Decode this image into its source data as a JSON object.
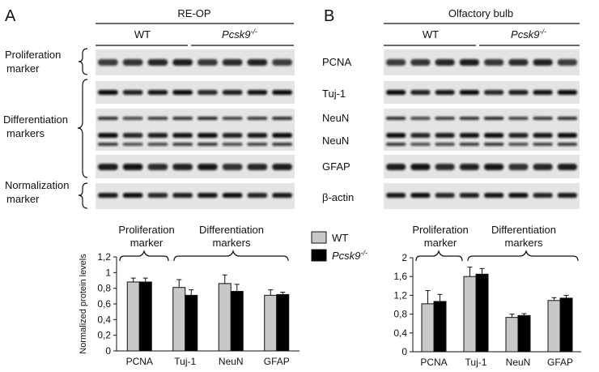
{
  "panel_a": {
    "letter": "A",
    "title": "RE-OP",
    "group_wt": "WT",
    "group_ko_base": "Pcsk9",
    "group_ko_sup": "-/-",
    "side_labels": [
      {
        "line1": "Proliferation",
        "line2": "marker"
      },
      {
        "line1": "Differentiation",
        "line2": "markers"
      },
      {
        "line1": "Normalization",
        "line2": "marker"
      }
    ]
  },
  "panel_b": {
    "letter": "B",
    "title": "Olfactory bulb",
    "group_wt": "WT",
    "group_ko_base": "Pcsk9",
    "group_ko_sup": "-/-"
  },
  "blot_rows": [
    "PCNA",
    "Tuj-1",
    "NeuN",
    "NeuN",
    "GFAP",
    "β-actin"
  ],
  "legend": {
    "wt": "WT",
    "ko_base": "Pcsk9",
    "ko_sup": "-/-",
    "wt_color": "#c8c8c8",
    "ko_color": "#000000"
  },
  "chart_labels": {
    "prolif_line1": "Proliferation",
    "prolif_line2": "marker",
    "diff_line1": "Differentiation",
    "diff_line2": "markers"
  },
  "chart_data": [
    {
      "type": "bar",
      "ylabel": "Normalized protein levels",
      "categories": [
        "PCNA",
        "Tuj-1",
        "NeuN",
        "GFAP"
      ],
      "ylim": [
        0,
        1.2
      ],
      "yticks": [
        "0",
        "0,2",
        "0,4",
        "0,6",
        "0,8",
        "1",
        "1,2"
      ],
      "series": [
        {
          "name": "WT",
          "values": [
            0.88,
            0.81,
            0.86,
            0.71
          ],
          "errors": [
            0.05,
            0.1,
            0.11,
            0.07
          ]
        },
        {
          "name": "Pcsk9-/-",
          "values": [
            0.88,
            0.71,
            0.76,
            0.72
          ],
          "errors": [
            0.05,
            0.07,
            0.09,
            0.03
          ]
        }
      ]
    },
    {
      "type": "bar",
      "ylabel": "",
      "categories": [
        "PCNA",
        "Tuj-1",
        "NeuN",
        "GFAP"
      ],
      "ylim": [
        0,
        2
      ],
      "yticks": [
        "0",
        "0,4",
        "0,8",
        "1,2",
        "1,6",
        "2"
      ],
      "series": [
        {
          "name": "WT",
          "values": [
            1.02,
            1.6,
            0.73,
            1.09
          ],
          "errors": [
            0.28,
            0.2,
            0.07,
            0.06
          ]
        },
        {
          "name": "Pcsk9-/-",
          "values": [
            1.07,
            1.65,
            0.77,
            1.14
          ],
          "errors": [
            0.15,
            0.12,
            0.04,
            0.06
          ]
        }
      ]
    }
  ]
}
